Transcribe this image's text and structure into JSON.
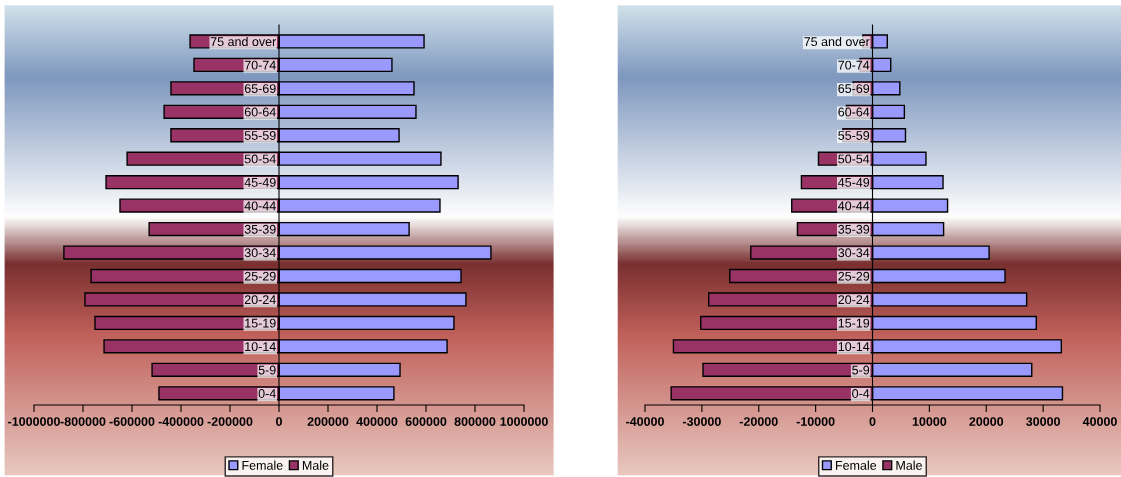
{
  "chart_data": [
    {
      "type": "bar",
      "orientation": "horizontal",
      "stacked": true,
      "legend": "bottom",
      "grid": false,
      "categories": [
        "75 and over",
        "70-74",
        "65-69",
        "60-64",
        "55-59",
        "50-54",
        "45-49",
        "40-44",
        "35-39",
        "30-34",
        "25-29",
        "20-24",
        "15-19",
        "10-14",
        "5-9",
        "0-4"
      ],
      "series": [
        {
          "name": "Female",
          "color": "#9999ff",
          "values": [
            592000,
            461000,
            551000,
            559000,
            490000,
            661000,
            731000,
            657000,
            531000,
            865000,
            743000,
            763000,
            714000,
            686000,
            494000,
            469000
          ]
        },
        {
          "name": "Male",
          "color": "#993366",
          "values": [
            -363000,
            -347000,
            -441000,
            -469000,
            -441000,
            -620000,
            -706000,
            -649000,
            -530000,
            -878000,
            -767000,
            -792000,
            -751000,
            -714000,
            -518000,
            -490000
          ]
        }
      ],
      "xlim": [
        -1000000,
        1000000
      ],
      "xticks": [
        -1000000,
        -800000,
        -600000,
        -400000,
        -200000,
        0,
        200000,
        400000,
        600000,
        800000,
        1000000
      ]
    },
    {
      "type": "bar",
      "orientation": "horizontal",
      "stacked": true,
      "legend": "bottom",
      "grid": false,
      "categories": [
        "75 and over",
        "70-74",
        "65-69",
        "60-64",
        "55-59",
        "50-54",
        "45-49",
        "40-44",
        "35-39",
        "30-34",
        "25-29",
        "20-24",
        "15-19",
        "10-14",
        "5-9",
        "0-4"
      ],
      "series": [
        {
          "name": "Female",
          "color": "#9999ff",
          "values": [
            2600,
            3200,
            4800,
            5600,
            5800,
            9400,
            12400,
            13200,
            12500,
            20500,
            23300,
            27100,
            28800,
            33200,
            28000,
            33400
          ]
        },
        {
          "name": "Male",
          "color": "#993366",
          "values": [
            -1700,
            -2200,
            -3400,
            -4600,
            -5200,
            -9500,
            -12500,
            -14200,
            -13200,
            -21400,
            -25100,
            -28800,
            -30200,
            -35000,
            -29800,
            -35400
          ]
        }
      ],
      "xlim": [
        -40000,
        40000
      ],
      "xticks": [
        -40000,
        -30000,
        -20000,
        -10000,
        0,
        10000,
        20000,
        30000,
        40000
      ]
    }
  ]
}
